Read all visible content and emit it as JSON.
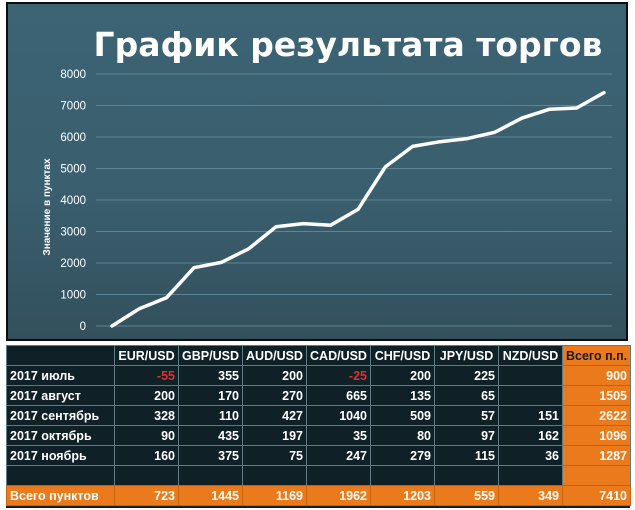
{
  "chart_data": {
    "type": "line",
    "title": "График результата торгов",
    "ylabel": "Значение в пунктах",
    "ylim": [
      0,
      8000
    ],
    "yticks": [
      0,
      1000,
      2000,
      3000,
      4000,
      5000,
      6000,
      7000,
      8000
    ],
    "grid": true,
    "series": [
      {
        "values": [
          0,
          550,
          900,
          1850,
          2020,
          2450,
          3150,
          3250,
          3200,
          3700,
          5050,
          5700,
          5850,
          5950,
          6150,
          6600,
          6880,
          6920,
          7410
        ]
      }
    ],
    "colors": {
      "line": "#ffffff",
      "background": "#3a5f6f",
      "grid": "#5f8594"
    }
  },
  "table": {
    "headers": [
      "",
      "EUR/USD",
      "GBP/USD",
      "AUD/USD",
      "CAD/USD",
      "CHF/USD",
      "JPY/USD",
      "NZD/USD",
      "Всего п.п."
    ],
    "rows": [
      {
        "label": "2017 июль",
        "values": [
          "-55",
          "355",
          "200",
          "-25",
          "200",
          "225",
          "",
          "900"
        ]
      },
      {
        "label": "2017 август",
        "values": [
          "200",
          "170",
          "270",
          "665",
          "135",
          "65",
          "",
          "1505"
        ]
      },
      {
        "label": "2017 сентябрь",
        "values": [
          "328",
          "110",
          "427",
          "1040",
          "509",
          "57",
          "151",
          "2622"
        ]
      },
      {
        "label": "2017 октябрь",
        "values": [
          "90",
          "435",
          "197",
          "35",
          "80",
          "97",
          "162",
          "1096"
        ]
      },
      {
        "label": "2017 ноябрь",
        "values": [
          "160",
          "375",
          "75",
          "247",
          "279",
          "115",
          "36",
          "1287"
        ]
      },
      {
        "label": "",
        "values": [
          "",
          "",
          "",
          "",
          "",
          "",
          "",
          ""
        ]
      }
    ],
    "total": {
      "label": "Всего пунктов",
      "values": [
        "723",
        "1445",
        "1169",
        "1962",
        "1203",
        "559",
        "349",
        "7410"
      ]
    },
    "colors": {
      "accent": "#ea7a1b",
      "negative": "#e42f2f",
      "background": "#0f2027"
    }
  }
}
